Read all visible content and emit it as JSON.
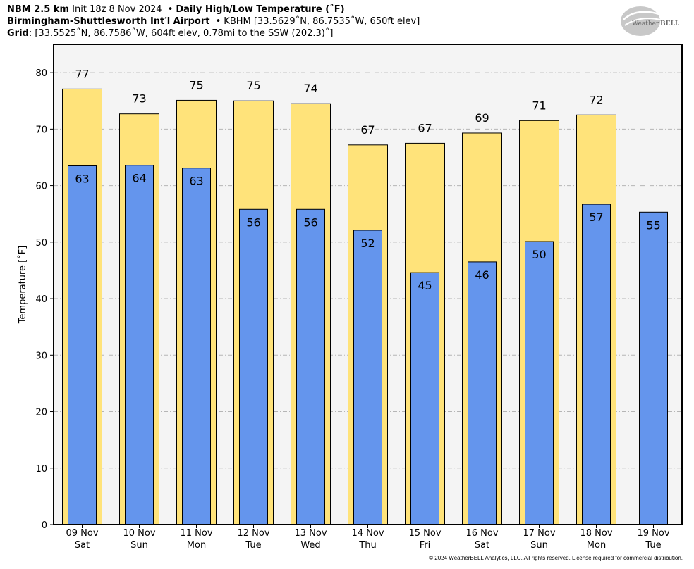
{
  "header": {
    "model": "NBM 2.5 km",
    "init": "Init 18z 8 Nov 2024",
    "product": "Daily High/Low Temperature (˚F)",
    "station_name": "Birmingham-Shuttlesworth Int′l Airport",
    "station_info": "KBHM [33.5629˚N, 86.7535˚W, 650ft elev]",
    "grid_label": "Grid",
    "grid_info": ": [33.5525˚N, 86.7586˚W, 604ft elev, 0.78mi to the SSW (202.3)˚]",
    "separator": "•"
  },
  "logo": {
    "text_a": "Weather",
    "text_b": "BELL"
  },
  "copyright": "© 2024 WeatherBELL Analytics, LLC. All rights reserved. License required for commercial distribution.",
  "chart_data": {
    "type": "bar",
    "ylabel": "Temperature [˚F]",
    "ylim": [
      0,
      85
    ],
    "yticks": [
      0,
      10,
      20,
      30,
      40,
      50,
      60,
      70,
      80
    ],
    "grid": true,
    "categories": [
      {
        "date": "09 Nov",
        "day": "Sat"
      },
      {
        "date": "10 Nov",
        "day": "Sun"
      },
      {
        "date": "11 Nov",
        "day": "Mon"
      },
      {
        "date": "12 Nov",
        "day": "Tue"
      },
      {
        "date": "13 Nov",
        "day": "Wed"
      },
      {
        "date": "14 Nov",
        "day": "Thu"
      },
      {
        "date": "15 Nov",
        "day": "Fri"
      },
      {
        "date": "16 Nov",
        "day": "Sat"
      },
      {
        "date": "17 Nov",
        "day": "Sun"
      },
      {
        "date": "18 Nov",
        "day": "Mon"
      },
      {
        "date": "19 Nov",
        "day": "Tue"
      }
    ],
    "series": [
      {
        "values": [
          77.1,
          72.7,
          75.1,
          75.0,
          74.5,
          67.2,
          67.5,
          69.3,
          71.5,
          72.5,
          null
        ],
        "labels": [
          "77",
          "73",
          "75",
          "75",
          "74",
          "67",
          "67",
          "69",
          "71",
          "72",
          ""
        ],
        "color": "#FFE37A"
      },
      {
        "values": [
          63.5,
          63.6,
          63.1,
          55.8,
          55.8,
          52.1,
          44.6,
          46.5,
          50.1,
          56.7,
          55.3
        ],
        "labels": [
          "63",
          "64",
          "63",
          "56",
          "56",
          "52",
          "45",
          "46",
          "50",
          "57",
          "55"
        ],
        "color": "#6495ED"
      }
    ]
  }
}
